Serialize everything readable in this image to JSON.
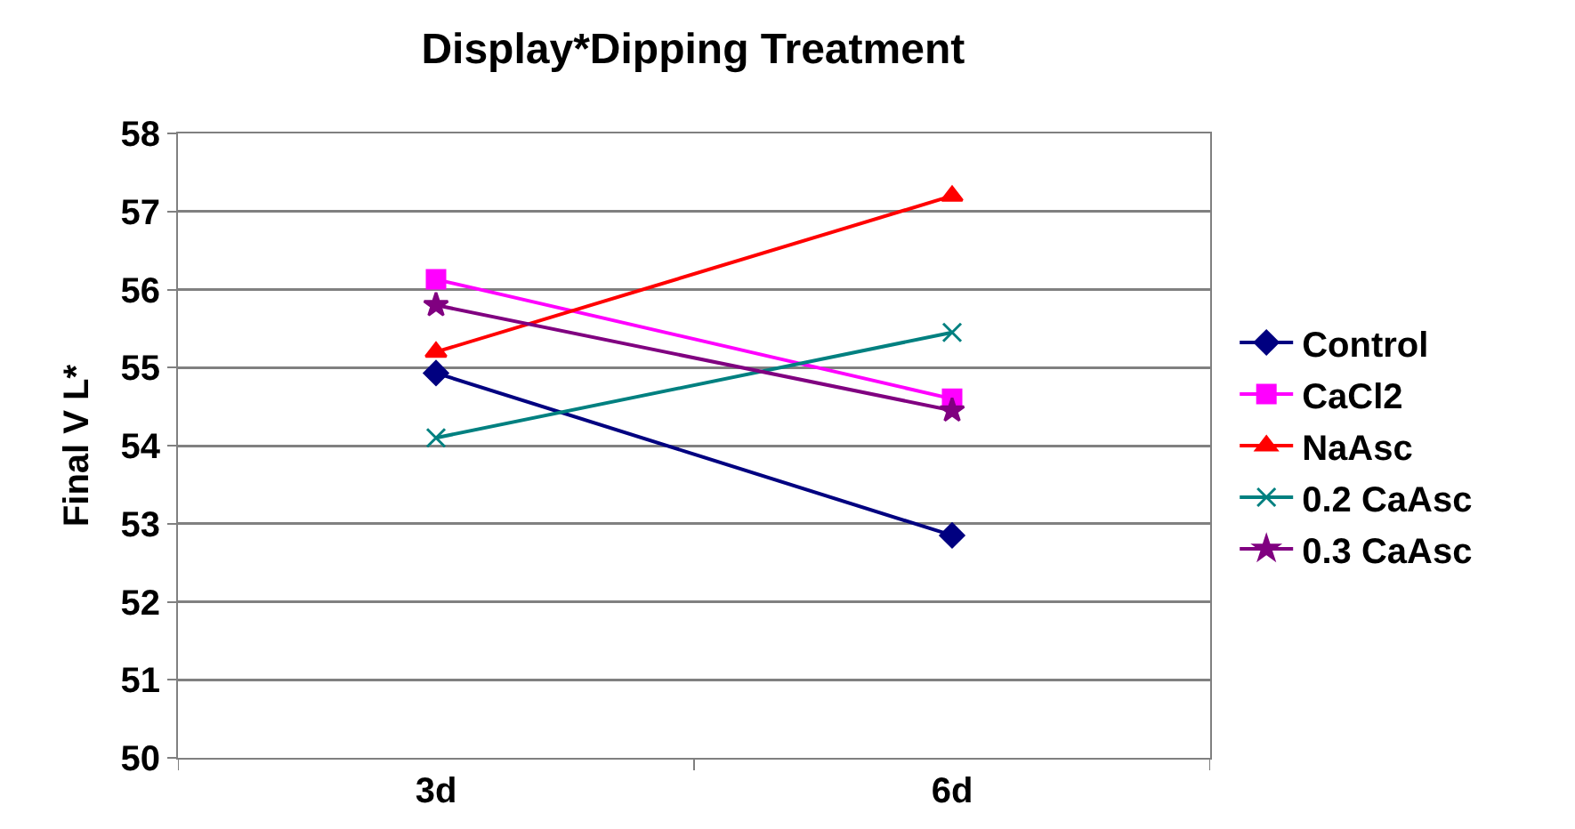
{
  "chart_data": {
    "type": "line",
    "title": "Display*Dipping Treatment",
    "ylabel": "Final V L*",
    "categories": [
      "3d",
      "6d"
    ],
    "series": [
      {
        "name": "Control",
        "color": "#000080",
        "marker": "diamond",
        "values": [
          54.93,
          52.85
        ]
      },
      {
        "name": "CaCl2",
        "color": "#ff00ff",
        "marker": "square",
        "values": [
          56.13,
          54.6
        ]
      },
      {
        "name": "NaAsc",
        "color": "#ff0000",
        "marker": "triangle",
        "values": [
          55.2,
          57.2
        ]
      },
      {
        "name": "0.2 CaAsc",
        "color": "#008080",
        "marker": "cross",
        "values": [
          54.1,
          55.45
        ]
      },
      {
        "name": "0.3 CaAsc",
        "color": "#800080",
        "marker": "star",
        "values": [
          55.8,
          54.45
        ]
      }
    ],
    "ylim": [
      50,
      58
    ],
    "yticks": [
      50,
      51,
      52,
      53,
      54,
      55,
      56,
      57,
      58
    ],
    "grid": "y",
    "legend": "right",
    "line_style": "solid"
  }
}
